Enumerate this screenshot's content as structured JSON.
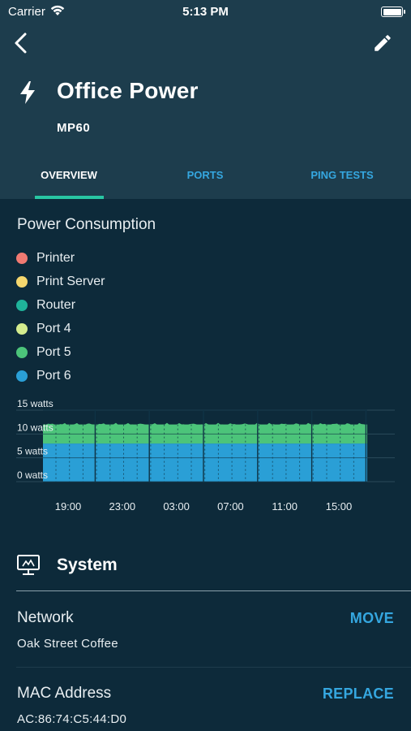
{
  "status_bar": {
    "carrier": "Carrier",
    "time": "5:13 PM"
  },
  "header": {
    "title": "Office Power",
    "model": "MP60",
    "back_icon": "chevron-left-icon",
    "edit_icon": "pencil-icon",
    "device_icon": "lightning-bolt-icon"
  },
  "tabs": [
    {
      "label": "OVERVIEW",
      "active": true
    },
    {
      "label": "PORTS",
      "active": false
    },
    {
      "label": "PING TESTS",
      "active": false
    }
  ],
  "power_consumption": {
    "title": "Power Consumption",
    "legend": [
      {
        "label": "Printer",
        "color": "#f07a72"
      },
      {
        "label": "Print Server",
        "color": "#f5d76e"
      },
      {
        "label": "Router",
        "color": "#1fb39a"
      },
      {
        "label": "Port 4",
        "color": "#d4ec8e"
      },
      {
        "label": "Port 5",
        "color": "#4cc47a"
      },
      {
        "label": "Port 6",
        "color": "#2a9fd6"
      }
    ]
  },
  "chart_data": {
    "type": "area",
    "ylabel_unit": "watts",
    "y_ticks": [
      "15 watts",
      "10 watts",
      "5 watts",
      "0 watts"
    ],
    "ylim": [
      0,
      15
    ],
    "x_ticks": [
      "19:00",
      "23:00",
      "03:00",
      "07:00",
      "11:00",
      "15:00"
    ],
    "stacked": true,
    "grid": true,
    "series": [
      {
        "name": "Port 6",
        "color": "#2a9fd6",
        "value": 8
      },
      {
        "name": "Port 5",
        "color": "#4cc47a",
        "value": 4
      },
      {
        "name": "Router",
        "color": "#1fb39a",
        "value": 0
      },
      {
        "name": "Port 4",
        "color": "#d4ec8e",
        "value": 0
      },
      {
        "name": "Print Server",
        "color": "#f5d76e",
        "value": 0
      },
      {
        "name": "Printer",
        "color": "#f07a72",
        "value": 0
      }
    ]
  },
  "system": {
    "title": "System",
    "icon": "monitor-icon",
    "network": {
      "label": "Network",
      "value": "Oak Street Coffee",
      "action": "MOVE"
    },
    "mac": {
      "label": "MAC Address",
      "value": "AC:86:74:C5:44:D0",
      "action": "REPLACE"
    }
  }
}
